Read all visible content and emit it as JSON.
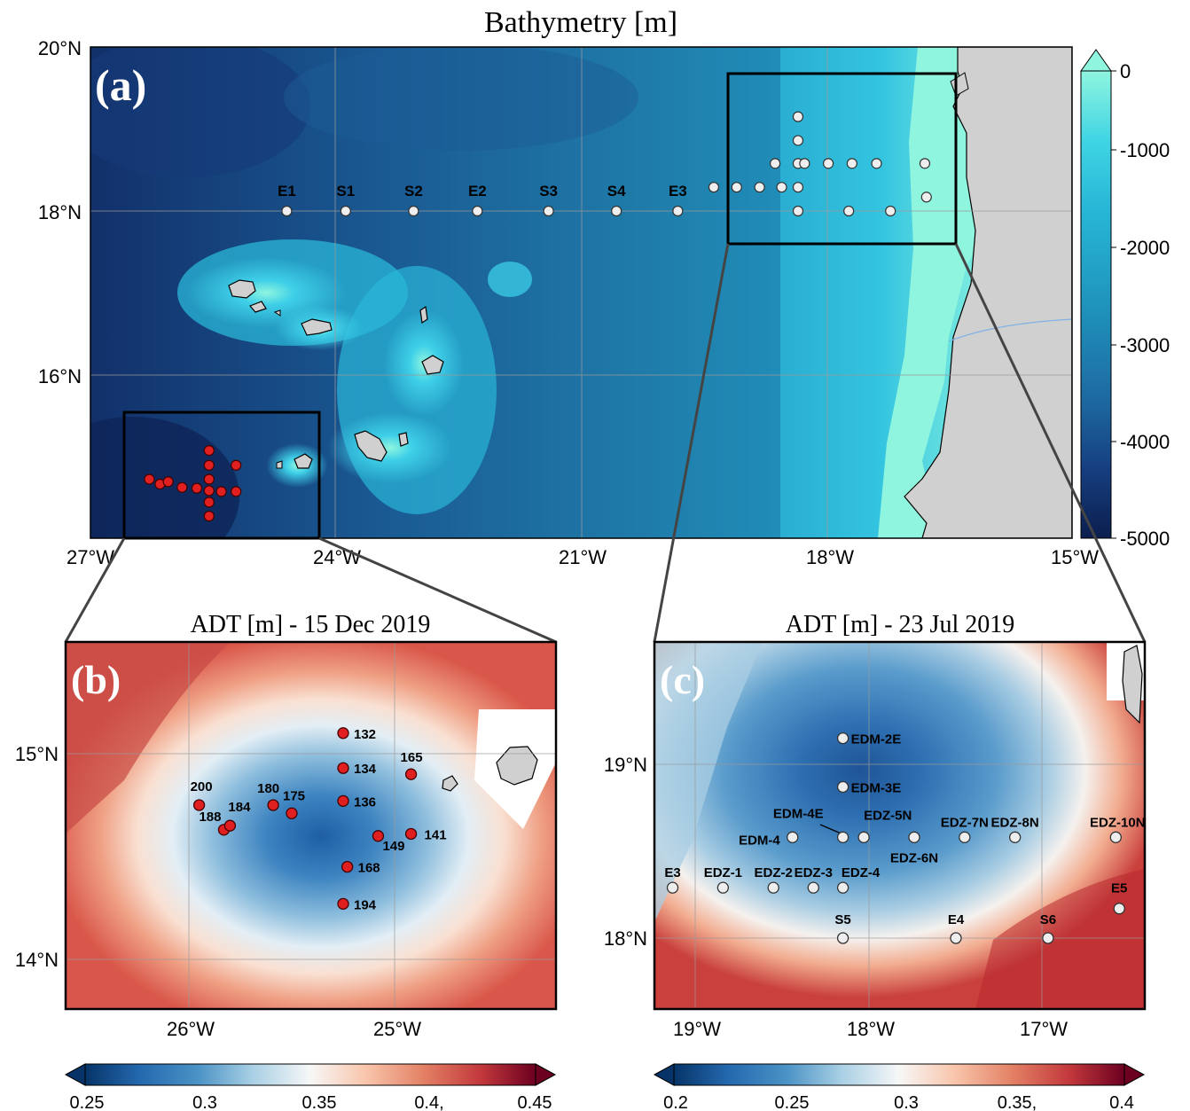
{
  "panel_a": {
    "title": "Bathymetry [m]",
    "letter": "(a)",
    "lat_labels": [
      "20°N",
      "18°N",
      "16°N"
    ],
    "lon_labels": [
      "27°W",
      "24°W",
      "21°W",
      "18°W",
      "15°W"
    ],
    "colorbar_ticks": [
      "0",
      "-1000",
      "-2000",
      "-3000",
      "-4000",
      "-5000"
    ],
    "colors": {
      "deep": "#0c2255",
      "mid": "#1e8fb0",
      "shallow": "#3fd0e8",
      "shelf": "#8ff5df",
      "land": "#d0d0d0"
    },
    "stations": [
      {
        "name": "E1",
        "lon": -24.6,
        "lat": 18.0
      },
      {
        "name": "S1",
        "lon": -23.88,
        "lat": 18.0
      },
      {
        "name": "S2",
        "lon": -23.05,
        "lat": 18.0
      },
      {
        "name": "E2",
        "lon": -22.27,
        "lat": 18.0
      },
      {
        "name": "S3",
        "lon": -21.4,
        "lat": 18.0
      },
      {
        "name": "S4",
        "lon": -20.57,
        "lat": 18.0
      },
      {
        "name": "E3",
        "lon": -19.82,
        "lat": 18.0
      }
    ],
    "box_c_stations": [
      [
        -19.38,
        18.29
      ],
      [
        -19.1,
        18.29
      ],
      [
        -18.82,
        18.29
      ],
      [
        -18.55,
        18.29
      ],
      [
        -18.35,
        18.29
      ],
      [
        -18.35,
        19.15
      ],
      [
        -18.35,
        18.86
      ],
      [
        -18.35,
        18.58
      ],
      [
        -18.35,
        18.0
      ],
      [
        -18.63,
        18.58
      ],
      [
        -18.27,
        18.58
      ],
      [
        -17.98,
        18.58
      ],
      [
        -17.69,
        18.58
      ],
      [
        -17.39,
        18.58
      ],
      [
        -16.8,
        18.58
      ],
      [
        -17.73,
        18.0
      ],
      [
        -17.22,
        18.0
      ],
      [
        -16.78,
        18.17
      ]
    ],
    "box_b_stations": [
      [
        -26.28,
        14.73
      ],
      [
        -26.15,
        14.67
      ],
      [
        -26.05,
        14.7
      ],
      [
        -25.88,
        14.63
      ],
      [
        -25.7,
        14.62
      ],
      [
        -25.55,
        14.59
      ],
      [
        -25.55,
        14.73
      ],
      [
        -25.55,
        14.9
      ],
      [
        -25.55,
        15.08
      ],
      [
        -25.55,
        14.45
      ],
      [
        -25.55,
        14.28
      ],
      [
        -25.4,
        14.58
      ],
      [
        -25.22,
        14.58
      ],
      [
        -25.22,
        14.9
      ]
    ]
  },
  "panel_b": {
    "title": "ADT [m] - 15 Dec 2019",
    "letter": "(b)",
    "lat_labels": [
      "15°N",
      "14°N"
    ],
    "lon_labels": [
      "26°W",
      "25°W"
    ],
    "colorbar_ticks": [
      "0.25",
      "0.3",
      "0.35",
      "0.4,",
      "0.45"
    ],
    "stations": [
      {
        "name": "132",
        "lon": -25.25,
        "lat": 15.1
      },
      {
        "name": "134",
        "lon": -25.25,
        "lat": 14.93
      },
      {
        "name": "136",
        "lon": -25.25,
        "lat": 14.77
      },
      {
        "name": "165",
        "lon": -24.92,
        "lat": 14.9
      },
      {
        "name": "141",
        "lon": -24.92,
        "lat": 14.61
      },
      {
        "name": "149",
        "lon": -25.08,
        "lat": 14.6
      },
      {
        "name": "168",
        "lon": -25.23,
        "lat": 14.45
      },
      {
        "name": "194",
        "lon": -25.25,
        "lat": 14.27
      },
      {
        "name": "200",
        "lon": -25.95,
        "lat": 14.75
      },
      {
        "name": "188",
        "lon": -25.83,
        "lat": 14.63
      },
      {
        "name": "184",
        "lon": -25.8,
        "lat": 14.65
      },
      {
        "name": "180",
        "lon": -25.59,
        "lat": 14.75
      },
      {
        "name": "175",
        "lon": -25.5,
        "lat": 14.71
      }
    ]
  },
  "panel_c": {
    "title": "ADT [m] - 23 Jul 2019",
    "letter": "(c)",
    "lat_labels": [
      "19°N",
      "18°N"
    ],
    "lon_labels": [
      "19°W",
      "18°W",
      "17°W"
    ],
    "colorbar_ticks": [
      "0.2",
      "0.25",
      "0.3",
      "0.35,",
      "0.4"
    ],
    "stations": [
      {
        "name": "EDM-2E",
        "lon": -18.15,
        "lat": 19.15
      },
      {
        "name": "EDM-3E",
        "lon": -18.15,
        "lat": 18.87
      },
      {
        "name": "EDM-4E",
        "lon": -18.15,
        "lat": 18.58
      },
      {
        "name": "EDM-4",
        "lon": -18.44,
        "lat": 18.58
      },
      {
        "name": "EDZ-5N",
        "lon": -18.03,
        "lat": 18.58
      },
      {
        "name": "EDZ-6N",
        "lon": -17.74,
        "lat": 18.58
      },
      {
        "name": "EDZ-7N",
        "lon": -17.45,
        "lat": 18.58
      },
      {
        "name": "EDZ-8N",
        "lon": -17.16,
        "lat": 18.58
      },
      {
        "name": "EDZ-10N",
        "lon": -16.58,
        "lat": 18.58
      },
      {
        "name": "E3",
        "lon": -19.13,
        "lat": 18.29
      },
      {
        "name": "EDZ-1",
        "lon": -18.84,
        "lat": 18.29
      },
      {
        "name": "EDZ-2",
        "lon": -18.55,
        "lat": 18.29
      },
      {
        "name": "EDZ-3",
        "lon": -18.32,
        "lat": 18.29
      },
      {
        "name": "EDZ-4",
        "lon": -18.15,
        "lat": 18.29
      },
      {
        "name": "S5",
        "lon": -18.15,
        "lat": 18.0
      },
      {
        "name": "E4",
        "lon": -17.5,
        "lat": 18.0
      },
      {
        "name": "S6",
        "lon": -16.97,
        "lat": 18.0
      },
      {
        "name": "E5",
        "lon": -16.56,
        "lat": 18.17
      }
    ]
  }
}
